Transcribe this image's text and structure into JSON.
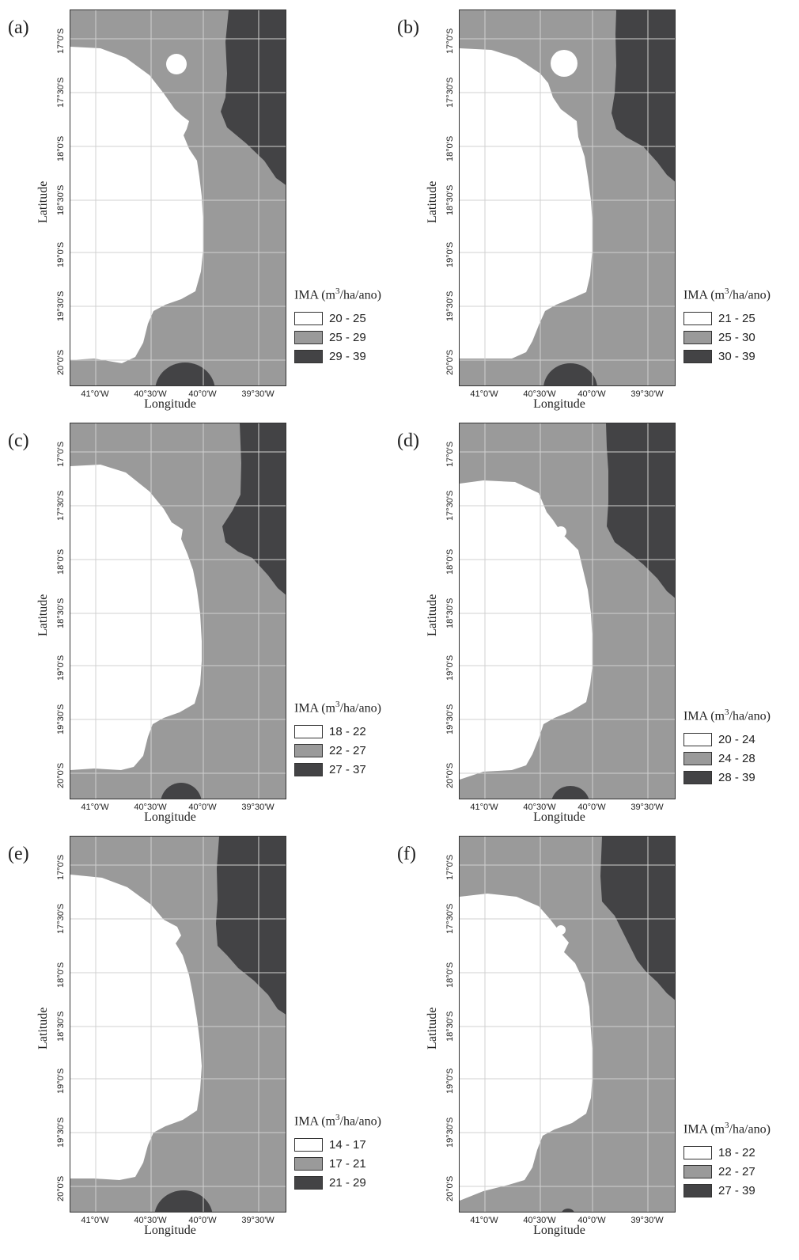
{
  "colors": {
    "low": "#ffffff",
    "mid": "#9a9a9a",
    "high": "#434345"
  },
  "axes": {
    "xlabel": "Longitude",
    "ylabel": "Latitude",
    "xticks": [
      "41°0'W",
      "40°30'W",
      "40°0'W",
      "39°30'W"
    ],
    "yticks": [
      "17°0'S",
      "17°30'S",
      "18°0'S",
      "18°30'S",
      "19°0'S",
      "19°30'S",
      "20°0'S"
    ]
  },
  "legend_unit": {
    "prefix": "IMA (m",
    "sup": "3",
    "suffix": "/ha/ano)"
  },
  "panels": [
    {
      "label": "(a)",
      "classes": [
        "20 - 25",
        "25 - 29",
        "29 - 39"
      ]
    },
    {
      "label": "(b)",
      "classes": [
        "21 - 25",
        "25 - 30",
        "30 - 39"
      ]
    },
    {
      "label": "(c)",
      "classes": [
        "18 - 22",
        "22 - 27",
        "27 - 37"
      ]
    },
    {
      "label": "(d)",
      "classes": [
        "20 - 24",
        "24 - 28",
        "28 - 39"
      ]
    },
    {
      "label": "(e)",
      "classes": [
        "14 - 17",
        "17 - 21",
        "21 - 29"
      ]
    },
    {
      "label": "(f)",
      "classes": [
        "18 - 22",
        "22 - 27",
        "27 - 39"
      ]
    }
  ]
}
